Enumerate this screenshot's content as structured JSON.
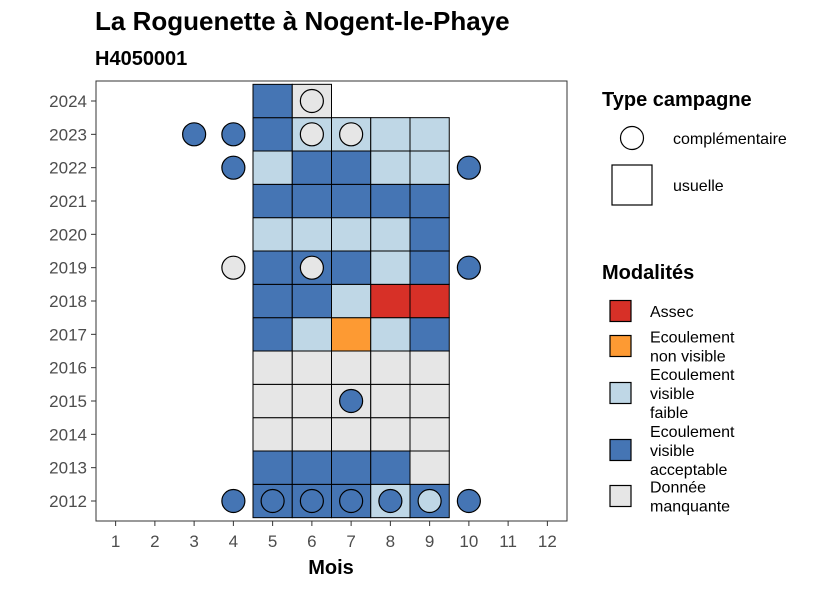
{
  "chart_data": {
    "type": "heatmap",
    "title": "La Roguenette à Nogent-le-Phaye",
    "subtitle": "H4050001",
    "xlabel": "Mois",
    "x_ticks": [
      "1",
      "2",
      "3",
      "4",
      "5",
      "6",
      "7",
      "8",
      "9",
      "10",
      "11",
      "12"
    ],
    "y_ticks": [
      "2012",
      "2013",
      "2014",
      "2015",
      "2016",
      "2017",
      "2018",
      "2019",
      "2020",
      "2021",
      "2022",
      "2023",
      "2024"
    ],
    "xlim": [
      0.5,
      12.5
    ],
    "ylim": [
      2011.4,
      2024.6
    ],
    "grid": false,
    "legend_position": "right",
    "legend_type": {
      "title": "Type campagne",
      "items": [
        {
          "key": "complementaire",
          "label": "complémentaire",
          "shape": "circle"
        },
        {
          "key": "usuelle",
          "label": "usuelle",
          "shape": "square"
        }
      ]
    },
    "legend_modalities": {
      "title": "Modalités",
      "items": [
        {
          "key": "assec",
          "lines": [
            "Assec"
          ],
          "color": "#d73027"
        },
        {
          "key": "ecoul_nv",
          "lines": [
            "Ecoulement",
            "non visible"
          ],
          "color": "#fd9a33"
        },
        {
          "key": "ecoul_vf",
          "lines": [
            "Ecoulement",
            "visible",
            "faible"
          ],
          "color": "#bfd7e6"
        },
        {
          "key": "ecoul_va",
          "lines": [
            "Ecoulement",
            "visible",
            "acceptable"
          ],
          "color": "#4575b4"
        },
        {
          "key": "nd",
          "lines": [
            "Donnée",
            "manquante"
          ],
          "color": "#e6e6e6"
        }
      ]
    },
    "usual": [
      {
        "year": 2012,
        "month": 5,
        "mod": "ecoul_va"
      },
      {
        "year": 2012,
        "month": 6,
        "mod": "ecoul_va"
      },
      {
        "year": 2012,
        "month": 7,
        "mod": "ecoul_va"
      },
      {
        "year": 2012,
        "month": 8,
        "mod": "ecoul_vf"
      },
      {
        "year": 2012,
        "month": 9,
        "mod": "ecoul_va"
      },
      {
        "year": 2013,
        "month": 5,
        "mod": "ecoul_va"
      },
      {
        "year": 2013,
        "month": 6,
        "mod": "ecoul_va"
      },
      {
        "year": 2013,
        "month": 7,
        "mod": "ecoul_va"
      },
      {
        "year": 2013,
        "month": 8,
        "mod": "ecoul_va"
      },
      {
        "year": 2013,
        "month": 9,
        "mod": "nd"
      },
      {
        "year": 2014,
        "month": 5,
        "mod": "nd"
      },
      {
        "year": 2014,
        "month": 6,
        "mod": "nd"
      },
      {
        "year": 2014,
        "month": 7,
        "mod": "nd"
      },
      {
        "year": 2014,
        "month": 8,
        "mod": "nd"
      },
      {
        "year": 2014,
        "month": 9,
        "mod": "nd"
      },
      {
        "year": 2015,
        "month": 5,
        "mod": "nd"
      },
      {
        "year": 2015,
        "month": 6,
        "mod": "nd"
      },
      {
        "year": 2015,
        "month": 7,
        "mod": "nd"
      },
      {
        "year": 2015,
        "month": 8,
        "mod": "nd"
      },
      {
        "year": 2015,
        "month": 9,
        "mod": "nd"
      },
      {
        "year": 2016,
        "month": 5,
        "mod": "nd"
      },
      {
        "year": 2016,
        "month": 6,
        "mod": "nd"
      },
      {
        "year": 2016,
        "month": 7,
        "mod": "nd"
      },
      {
        "year": 2016,
        "month": 8,
        "mod": "nd"
      },
      {
        "year": 2016,
        "month": 9,
        "mod": "nd"
      },
      {
        "year": 2017,
        "month": 5,
        "mod": "ecoul_va"
      },
      {
        "year": 2017,
        "month": 6,
        "mod": "ecoul_vf"
      },
      {
        "year": 2017,
        "month": 7,
        "mod": "ecoul_nv"
      },
      {
        "year": 2017,
        "month": 8,
        "mod": "ecoul_vf"
      },
      {
        "year": 2017,
        "month": 9,
        "mod": "ecoul_va"
      },
      {
        "year": 2018,
        "month": 5,
        "mod": "ecoul_va"
      },
      {
        "year": 2018,
        "month": 6,
        "mod": "ecoul_va"
      },
      {
        "year": 2018,
        "month": 7,
        "mod": "ecoul_vf"
      },
      {
        "year": 2018,
        "month": 8,
        "mod": "assec"
      },
      {
        "year": 2018,
        "month": 9,
        "mod": "assec"
      },
      {
        "year": 2019,
        "month": 5,
        "mod": "ecoul_va"
      },
      {
        "year": 2019,
        "month": 6,
        "mod": "ecoul_va"
      },
      {
        "year": 2019,
        "month": 7,
        "mod": "ecoul_va"
      },
      {
        "year": 2019,
        "month": 8,
        "mod": "ecoul_vf"
      },
      {
        "year": 2019,
        "month": 9,
        "mod": "ecoul_va"
      },
      {
        "year": 2020,
        "month": 5,
        "mod": "ecoul_vf"
      },
      {
        "year": 2020,
        "month": 6,
        "mod": "ecoul_vf"
      },
      {
        "year": 2020,
        "month": 7,
        "mod": "ecoul_vf"
      },
      {
        "year": 2020,
        "month": 8,
        "mod": "ecoul_vf"
      },
      {
        "year": 2020,
        "month": 9,
        "mod": "ecoul_va"
      },
      {
        "year": 2021,
        "month": 5,
        "mod": "ecoul_va"
      },
      {
        "year": 2021,
        "month": 6,
        "mod": "ecoul_va"
      },
      {
        "year": 2021,
        "month": 7,
        "mod": "ecoul_va"
      },
      {
        "year": 2021,
        "month": 8,
        "mod": "ecoul_va"
      },
      {
        "year": 2021,
        "month": 9,
        "mod": "ecoul_va"
      },
      {
        "year": 2022,
        "month": 5,
        "mod": "ecoul_vf"
      },
      {
        "year": 2022,
        "month": 6,
        "mod": "ecoul_va"
      },
      {
        "year": 2022,
        "month": 7,
        "mod": "ecoul_va"
      },
      {
        "year": 2022,
        "month": 8,
        "mod": "ecoul_vf"
      },
      {
        "year": 2022,
        "month": 9,
        "mod": "ecoul_vf"
      },
      {
        "year": 2023,
        "month": 5,
        "mod": "ecoul_va"
      },
      {
        "year": 2023,
        "month": 6,
        "mod": "ecoul_vf"
      },
      {
        "year": 2023,
        "month": 7,
        "mod": "ecoul_vf"
      },
      {
        "year": 2023,
        "month": 8,
        "mod": "ecoul_vf"
      },
      {
        "year": 2023,
        "month": 9,
        "mod": "ecoul_vf"
      },
      {
        "year": 2024,
        "month": 5,
        "mod": "ecoul_va"
      },
      {
        "year": 2024,
        "month": 6,
        "mod": "nd"
      }
    ],
    "complementary": [
      {
        "year": 2012,
        "month": 4,
        "mod": "ecoul_va"
      },
      {
        "year": 2012,
        "month": 5,
        "mod": "ecoul_va"
      },
      {
        "year": 2012,
        "month": 6,
        "mod": "ecoul_va"
      },
      {
        "year": 2012,
        "month": 7,
        "mod": "ecoul_va"
      },
      {
        "year": 2012,
        "month": 8,
        "mod": "ecoul_va"
      },
      {
        "year": 2012,
        "month": 9,
        "mod": "ecoul_vf"
      },
      {
        "year": 2012,
        "month": 10,
        "mod": "ecoul_va"
      },
      {
        "year": 2015,
        "month": 7,
        "mod": "ecoul_va"
      },
      {
        "year": 2019,
        "month": 4,
        "mod": "nd"
      },
      {
        "year": 2019,
        "month": 6,
        "mod": "nd"
      },
      {
        "year": 2019,
        "month": 10,
        "mod": "ecoul_va"
      },
      {
        "year": 2022,
        "month": 4,
        "mod": "ecoul_va"
      },
      {
        "year": 2022,
        "month": 10,
        "mod": "ecoul_va"
      },
      {
        "year": 2023,
        "month": 3,
        "mod": "ecoul_va"
      },
      {
        "year": 2023,
        "month": 4,
        "mod": "ecoul_va"
      },
      {
        "year": 2023,
        "month": 6,
        "mod": "nd"
      },
      {
        "year": 2023,
        "month": 7,
        "mod": "nd"
      },
      {
        "year": 2024,
        "month": 6,
        "mod": "nd"
      }
    ]
  }
}
